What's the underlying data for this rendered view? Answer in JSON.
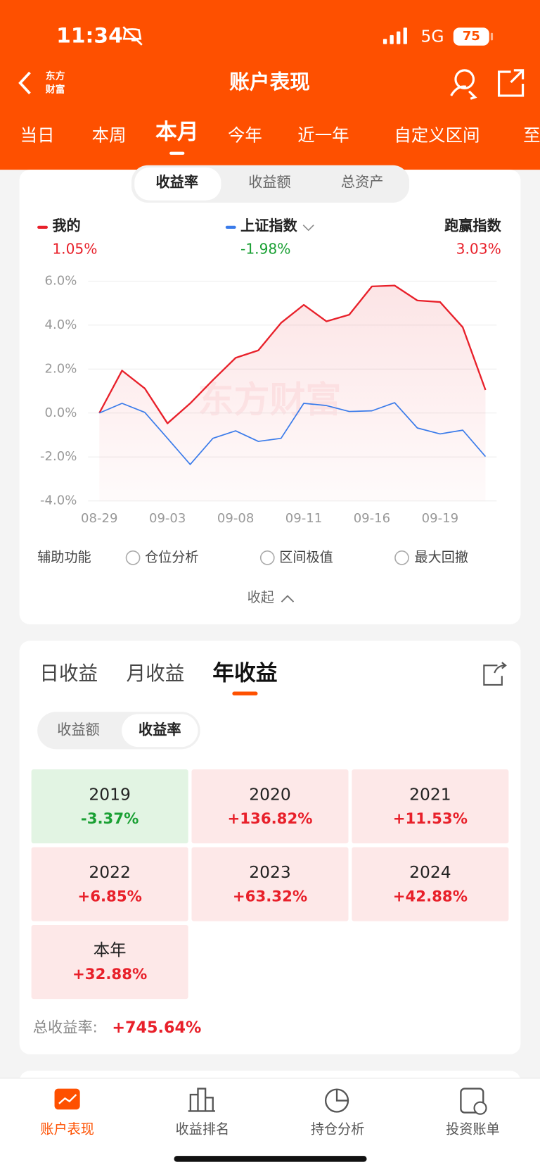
{
  "status": {
    "time": "11:34",
    "network": "5G",
    "battery": "75"
  },
  "nav": {
    "logo": [
      "东方",
      "财富"
    ],
    "title": "账户表现"
  },
  "period_tabs": [
    "当日",
    "本周",
    "本月",
    "今年",
    "近一年",
    "自定义区间",
    "至"
  ],
  "chart_tabs": [
    "收益率",
    "收益额",
    "总资产"
  ],
  "chart_data": {
    "type": "line",
    "categories": [
      "08-29",
      null,
      null,
      "09-03",
      null,
      null,
      "09-08",
      null,
      null,
      "09-11",
      null,
      null,
      "09-16",
      null,
      null,
      "09-19",
      null,
      null
    ],
    "series": [
      {
        "name": "我的",
        "color": "#e8202a",
        "values": [
          0,
          1.93,
          1.12,
          -0.47,
          0.44,
          1.5,
          2.51,
          2.85,
          4.1,
          4.92,
          4.17,
          4.47,
          5.76,
          5.8,
          5.12,
          5.05,
          3.9,
          1.05
        ]
      },
      {
        "name": "上证指数",
        "color": "#3a7bea",
        "values": [
          0,
          0.44,
          0.03,
          -1.15,
          -2.34,
          -1.15,
          -0.81,
          -1.29,
          -1.15,
          0.44,
          0.34,
          0.07,
          0.1,
          0.47,
          -0.68,
          -0.95,
          -0.78,
          -1.98
        ]
      }
    ],
    "ylim": [
      -4,
      6
    ],
    "yticks": [
      {
        "value": -4,
        "label": "-4.0%"
      },
      {
        "value": -2,
        "label": "-2.0%"
      },
      {
        "value": 0,
        "label": "0.0%"
      },
      {
        "value": 2,
        "label": "2.0%"
      },
      {
        "value": 4,
        "label": "4.0%"
      },
      {
        "value": 6,
        "label": "6.0%"
      }
    ],
    "grid": true
  },
  "legend_values": [
    "1.05%",
    "-1.98%"
  ],
  "excess": {
    "name": "跑赢指数",
    "value": "3.03%"
  },
  "watermark": "东方财富",
  "aux": {
    "label": "辅助功能",
    "options": [
      "仓位分析",
      "区间极值",
      "最大回撤"
    ]
  },
  "collapse": "收起",
  "returns": {
    "tabs": [
      "日收益",
      "月收益",
      "年收益"
    ],
    "modes": [
      "收益额",
      "收益率"
    ],
    "cells": [
      {
        "year": "2019",
        "value": "-3.37%"
      },
      {
        "year": "2020",
        "value": "+136.82%"
      },
      {
        "year": "2021",
        "value": "+11.53%"
      },
      {
        "year": "2022",
        "value": "+6.85%"
      },
      {
        "year": "2023",
        "value": "+63.32%"
      },
      {
        "year": "2024",
        "value": "+42.88%"
      },
      {
        "year": "本年",
        "value": "+32.88%"
      }
    ],
    "total_label": "总收益率:",
    "total": "+745.64%"
  },
  "bottom_nav": [
    "账户表现",
    "收益排名",
    "持仓分析",
    "投资账单"
  ]
}
